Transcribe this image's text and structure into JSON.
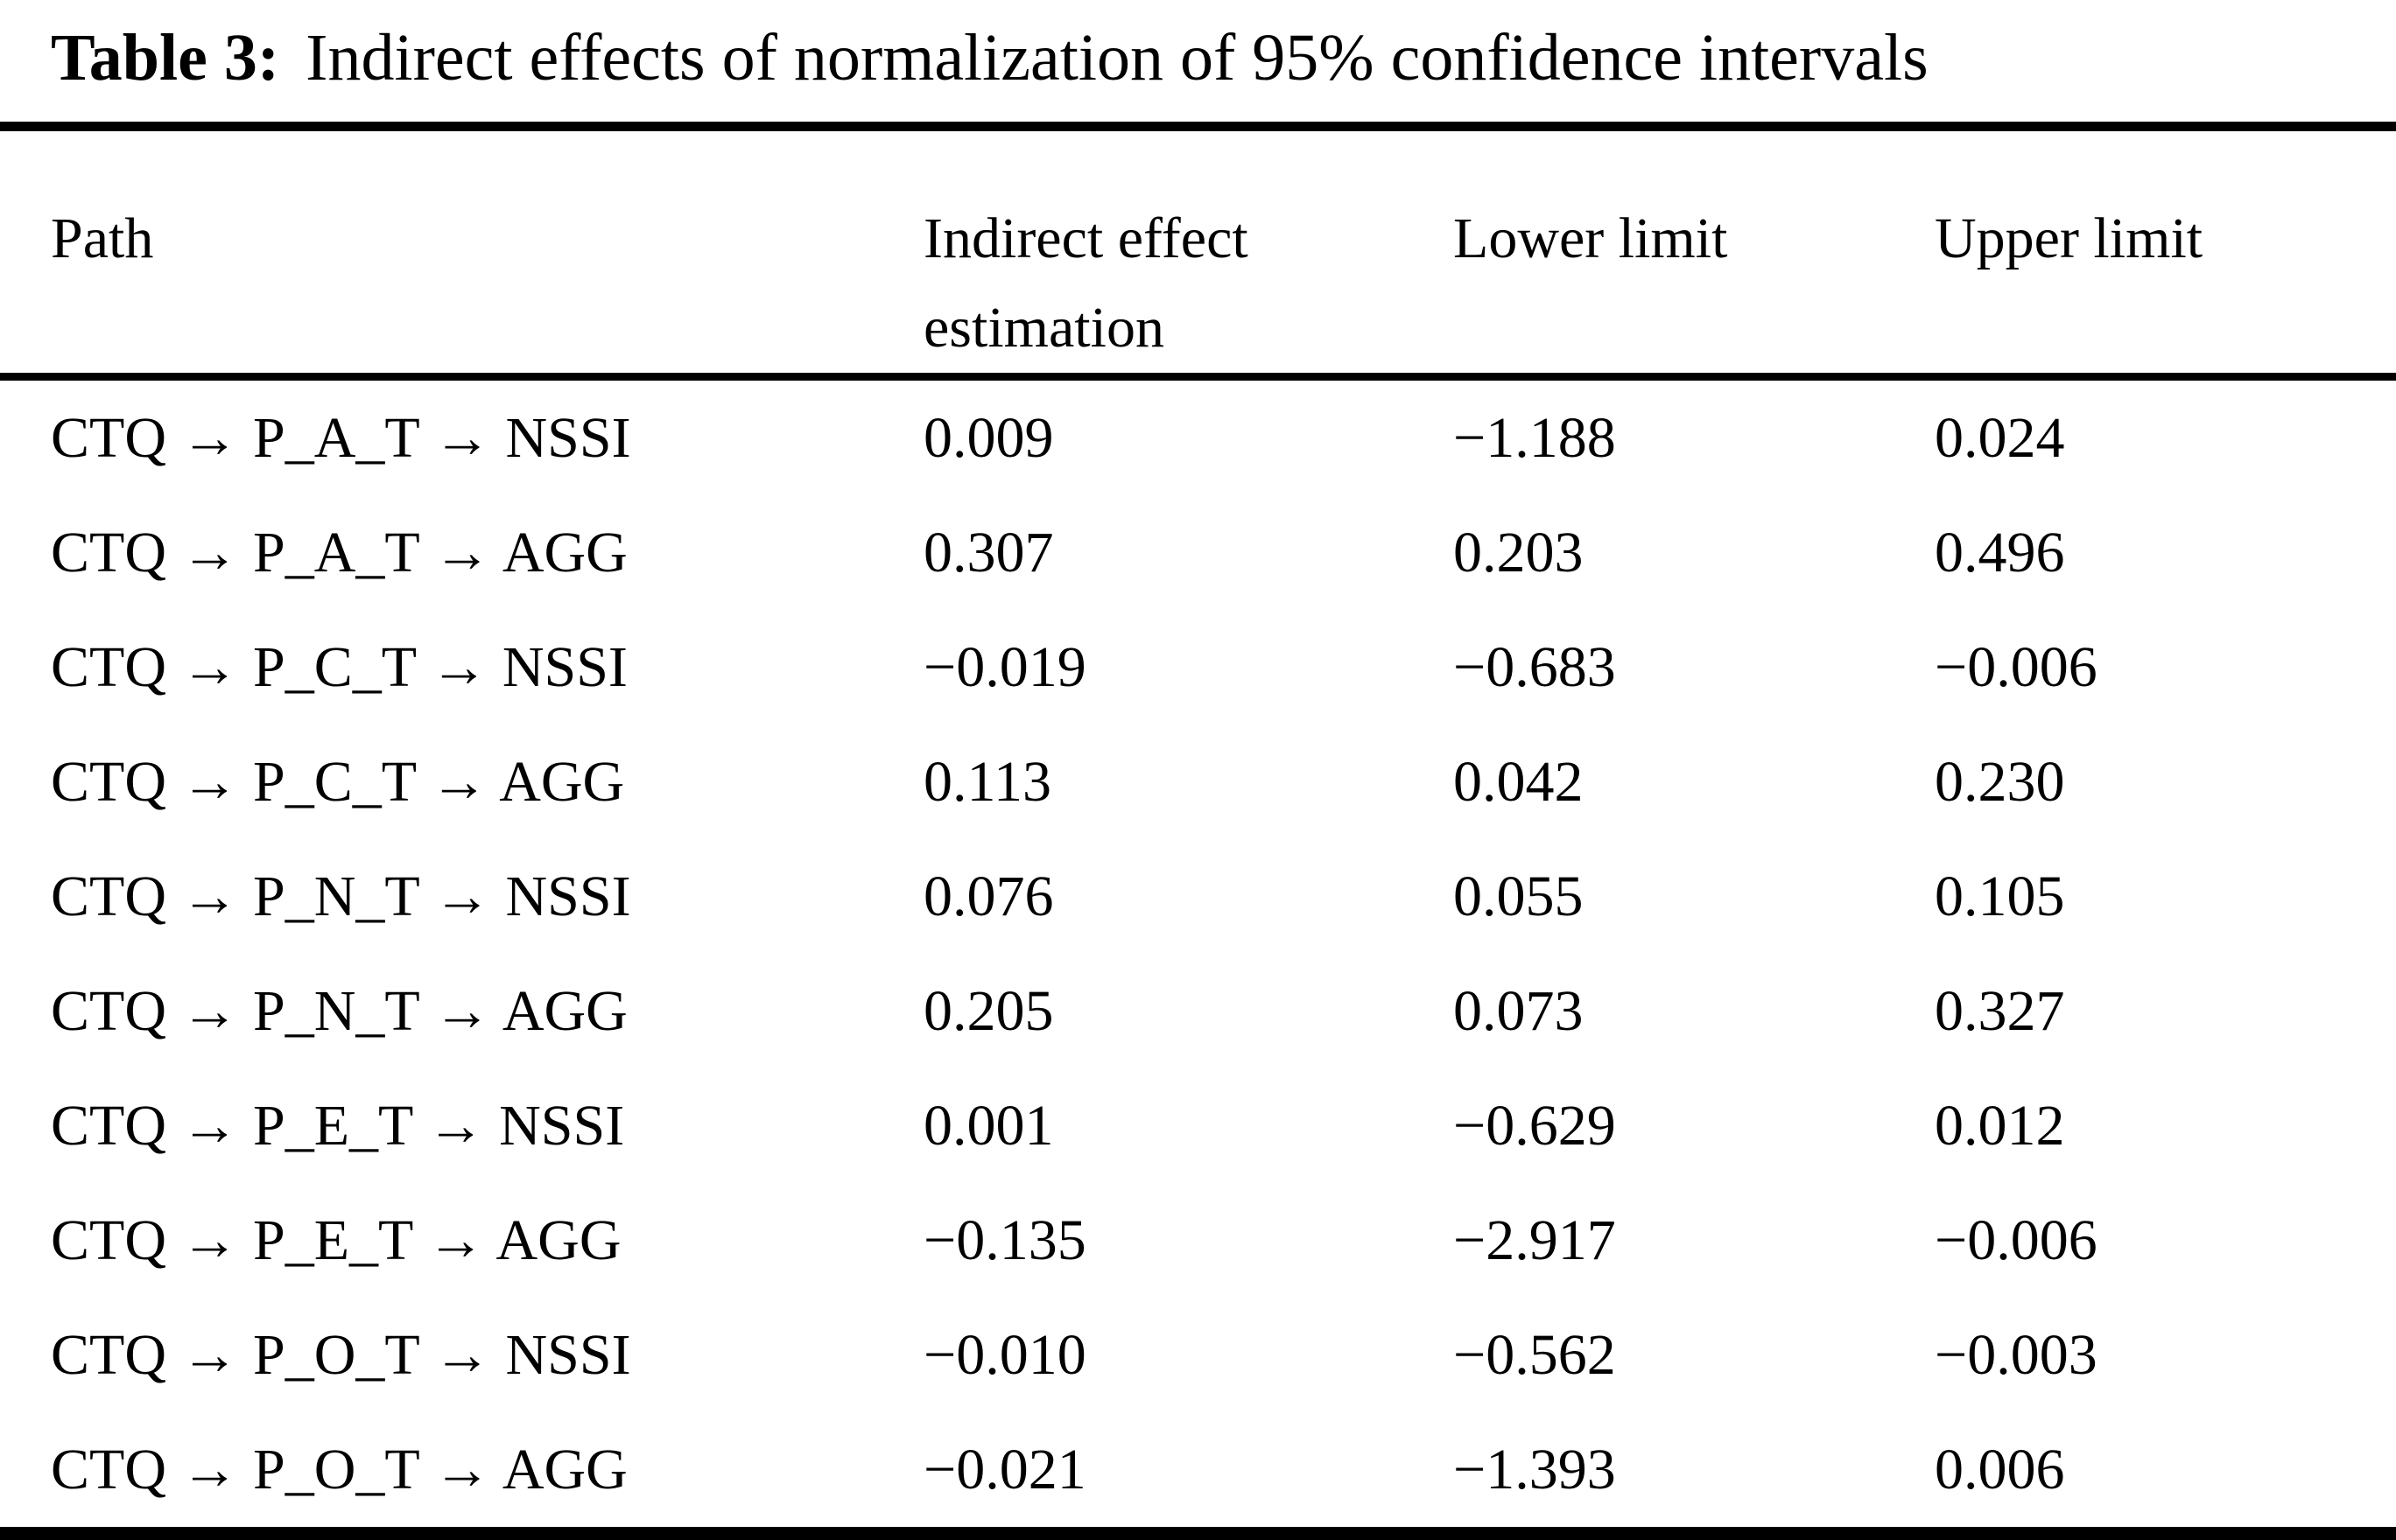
{
  "caption": {
    "label": "Table 3:",
    "text": "Indirect effects of normalization of 95% confidence intervals"
  },
  "table": {
    "header": {
      "path": "Path",
      "indirect_effect_line1": "Indirect effect",
      "indirect_effect_line2": "estimation",
      "lower_limit": "Lower limit",
      "upper_limit": "Upper limit"
    },
    "rows": [
      {
        "path": "CTQ → P_A_T → NSSI",
        "indirect_effect": "0.009",
        "lower_limit": "−1.188",
        "upper_limit": "0.024"
      },
      {
        "path": "CTQ → P_A_T → AGG",
        "indirect_effect": "0.307",
        "lower_limit": "0.203",
        "upper_limit": "0.496"
      },
      {
        "path": "CTQ → P_C_T → NSSI",
        "indirect_effect": "−0.019",
        "lower_limit": "−0.683",
        "upper_limit": "−0.006"
      },
      {
        "path": "CTQ → P_C_T → AGG",
        "indirect_effect": "0.113",
        "lower_limit": "0.042",
        "upper_limit": "0.230"
      },
      {
        "path": "CTQ → P_N_T → NSSI",
        "indirect_effect": "0.076",
        "lower_limit": "0.055",
        "upper_limit": "0.105"
      },
      {
        "path": "CTQ → P_N_T → AGG",
        "indirect_effect": "0.205",
        "lower_limit": "0.073",
        "upper_limit": "0.327"
      },
      {
        "path": "CTQ → P_E_T → NSSI",
        "indirect_effect": "0.001",
        "lower_limit": "−0.629",
        "upper_limit": "0.012"
      },
      {
        "path": "CTQ → P_E_T → AGG",
        "indirect_effect": "−0.135",
        "lower_limit": "−2.917",
        "upper_limit": "−0.006"
      },
      {
        "path": "CTQ → P_O_T → NSSI",
        "indirect_effect": "−0.010",
        "lower_limit": "−0.562",
        "upper_limit": "−0.003"
      },
      {
        "path": "CTQ → P_O_T → AGG",
        "indirect_effect": "−0.021",
        "lower_limit": "−1.393",
        "upper_limit": "0.006"
      }
    ]
  }
}
